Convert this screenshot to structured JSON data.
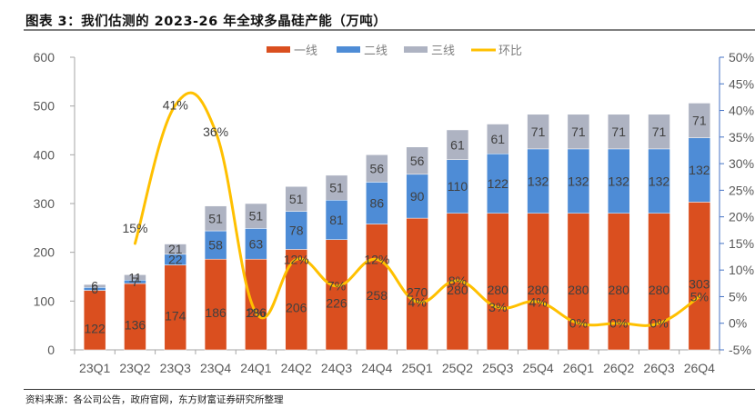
{
  "title": "图表 3：我们估测的 2023-26 年全球多晶硅产能（万吨）",
  "source": "资料来源：各公司公告，政府官网，东方财富证券研究所整理",
  "colors": {
    "tier1": "#DA4F1F",
    "tier2": "#4E8CD6",
    "tier3": "#AEB3C2",
    "qoq": "#FFC000",
    "right_axis": "#4472C4"
  },
  "chart_data": {
    "type": "bar",
    "stacked": true,
    "title": "我们估测的 2023-26 年全球多晶硅产能（万吨）",
    "categories": [
      "23Q1",
      "23Q2",
      "23Q3",
      "23Q4",
      "24Q1",
      "24Q2",
      "24Q3",
      "24Q4",
      "25Q1",
      "25Q2",
      "25Q3",
      "25Q4",
      "26Q1",
      "26Q2",
      "26Q3",
      "26Q4"
    ],
    "series": [
      {
        "name": "一线",
        "type": "bar",
        "axis": "left",
        "values": [
          122,
          136,
          174,
          186,
          186,
          206,
          226,
          258,
          270,
          280,
          280,
          280,
          280,
          280,
          280,
          303
        ]
      },
      {
        "name": "二线",
        "type": "bar",
        "axis": "left",
        "values": [
          6,
          7,
          22,
          58,
          63,
          78,
          81,
          86,
          90,
          110,
          122,
          132,
          132,
          132,
          132,
          132
        ]
      },
      {
        "name": "三线",
        "type": "bar",
        "axis": "left",
        "values": [
          6,
          11,
          21,
          51,
          51,
          51,
          51,
          56,
          56,
          61,
          61,
          71,
          71,
          71,
          71,
          71
        ]
      },
      {
        "name": "环比",
        "type": "line",
        "axis": "right",
        "values": [
          null,
          15,
          41,
          36,
          2,
          12,
          7,
          12,
          4,
          8,
          3,
          4,
          0,
          0,
          0,
          5
        ],
        "labels": [
          "",
          "15%",
          "41%",
          "36%",
          "2%",
          "12%",
          "7%",
          "12%",
          "4%",
          "8%",
          "3%",
          "4%",
          "0%",
          "0%",
          "0%",
          "5%"
        ]
      }
    ],
    "left_axis": {
      "ylim": [
        0,
        600
      ],
      "ticks": [
        "0",
        "100",
        "200",
        "300",
        "400",
        "500",
        "600"
      ]
    },
    "right_axis": {
      "ylim": [
        -5,
        50
      ],
      "unit": "%",
      "ticks": [
        "-5%",
        "0%",
        "5%",
        "10%",
        "15%",
        "20%",
        "25%",
        "30%",
        "35%",
        "40%",
        "45%",
        "50%"
      ]
    },
    "legend": {
      "position": "top-center",
      "entries": [
        "一线",
        "二线",
        "三线",
        "环比"
      ]
    },
    "grid": false,
    "xlabel": "",
    "ylabel": ""
  }
}
